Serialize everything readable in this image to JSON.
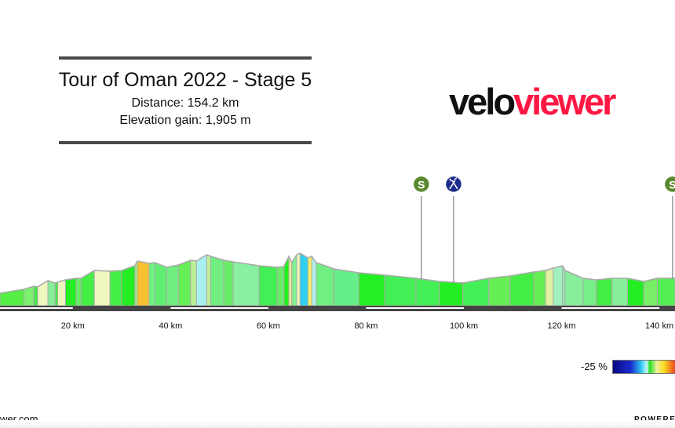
{
  "header": {
    "title": "Tour of Oman 2022 - Stage 5",
    "distance": "Distance: 154.2 km",
    "elevation_gain": "Elevation gain: 1,905 m"
  },
  "logo": {
    "part1": "velo",
    "part2": "viewer",
    "colors": {
      "velo": "#111111",
      "viewer": "#ff1744"
    }
  },
  "legend": {
    "min_label": "-25 %"
  },
  "footer": {
    "site": "wer.com",
    "powered": "POWERED"
  },
  "chart_data": {
    "type": "area",
    "title": "",
    "xlabel": "",
    "ylabel": "",
    "x_unit": "km",
    "xlim": [
      5.1,
      143.2
    ],
    "x_ticks": [
      "20 km",
      "40 km",
      "60 km",
      "80 km",
      "100 km",
      "120 km",
      "140 km"
    ],
    "x_tick_values": [
      20,
      40,
      60,
      80,
      100,
      120,
      140
    ],
    "grid": false,
    "profile_km": [
      5.1,
      10.0,
      12.0,
      12.8,
      14.9,
      16.4,
      16.9,
      18.5,
      20.7,
      21.7,
      24.4,
      27.6,
      30.0,
      32.7,
      33.2,
      35.6,
      36.8,
      39.2,
      41.6,
      44.1,
      45.3,
      47.4,
      48.2,
      50.9,
      52.8,
      58.1,
      61.8,
      63.2,
      64.2,
      64.8,
      65.8,
      66.5,
      68.1,
      68.9,
      69.8,
      73.4,
      78.5,
      83.8,
      90.2,
      95.0,
      99.8,
      105.1,
      109.5,
      114.3,
      116.7,
      118.3,
      120.2,
      120.7,
      124.4,
      127.1,
      130.3,
      133.5,
      136.8,
      139.6,
      143.2
    ],
    "profile_elev_relative": [
      160,
      210,
      250,
      240,
      320,
      290,
      300,
      330,
      350,
      350,
      450,
      440,
      450,
      510,
      570,
      540,
      550,
      490,
      520,
      580,
      570,
      650,
      630,
      580,
      560,
      510,
      490,
      500,
      630,
      550,
      650,
      670,
      610,
      630,
      550,
      470,
      420,
      390,
      350,
      310,
      290,
      350,
      380,
      430,
      450,
      480,
      510,
      450,
      350,
      330,
      350,
      350,
      310,
      350,
      350
    ],
    "segment_colors": [
      "#55ee44",
      "#7ef070",
      "#44e844",
      "#f0f6c0",
      "#88ee99",
      "#44ee44",
      "#f0f6c0",
      "#22ee22",
      "#66ee66",
      "#44ee44",
      "#f0f6c0",
      "#44f044",
      "#22ee22",
      "#a0f080",
      "#f8c030",
      "#70f080",
      "#60ee70",
      "#70ee80",
      "#66ee55",
      "#b8f098",
      "#a8f0f0",
      "#c0f098",
      "#70ee80",
      "#66ee66",
      "#88f0a0",
      "#44ee55",
      "#66ee66",
      "#22ee22",
      "#f0f090",
      "#80f090",
      "#f0f6c0",
      "#30d0f0",
      "#f8f060",
      "#b0f0e8",
      "#70f080",
      "#66ee88",
      "#22f022",
      "#44ee55",
      "#44ee55",
      "#22ee22",
      "#44ee55",
      "#66ee55",
      "#44ee44",
      "#66ee55",
      "#e0f0a0",
      "#a0f0c0",
      "#90f0b0",
      "#88ee99",
      "#77ee88",
      "#44ee44",
      "#88ee99",
      "#22ee22",
      "#77ee66",
      "#55ee55"
    ],
    "markers": [
      {
        "type": "sprint",
        "label": "S",
        "km": 91.3,
        "color": "#5a8a2e"
      },
      {
        "type": "feed",
        "icon": "fork-knife-icon",
        "km": 97.9,
        "color": "#1e2e8c"
      },
      {
        "type": "sprint",
        "label": "S",
        "km": 142.7,
        "color": "#5a8a2e"
      }
    ]
  }
}
